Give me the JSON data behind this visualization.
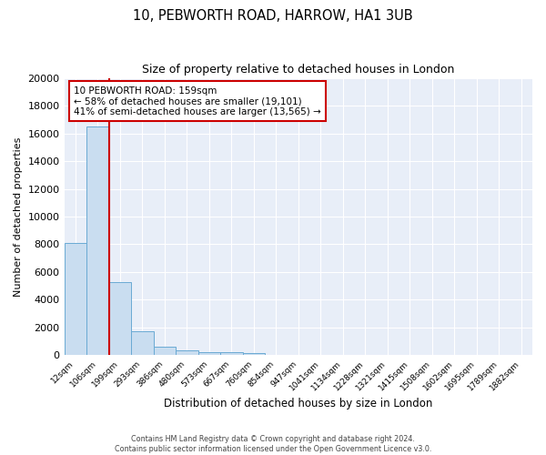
{
  "title": "10, PEBWORTH ROAD, HARROW, HA1 3UB",
  "subtitle": "Size of property relative to detached houses in London",
  "xlabel": "Distribution of detached houses by size in London",
  "ylabel": "Number of detached properties",
  "bar_labels": [
    "12sqm",
    "106sqm",
    "199sqm",
    "293sqm",
    "386sqm",
    "480sqm",
    "573sqm",
    "667sqm",
    "760sqm",
    "854sqm",
    "947sqm",
    "1041sqm",
    "1134sqm",
    "1228sqm",
    "1321sqm",
    "1415sqm",
    "1508sqm",
    "1602sqm",
    "1695sqm",
    "1789sqm",
    "1882sqm"
  ],
  "bar_values": [
    8100,
    16500,
    5300,
    1750,
    650,
    350,
    250,
    200,
    150,
    0,
    0,
    0,
    0,
    0,
    0,
    0,
    0,
    0,
    0,
    0,
    0
  ],
  "bar_color": "#c9ddf0",
  "bar_edge_color": "#6aaad4",
  "red_line_x": 1.5,
  "property_size": 159,
  "pct_smaller": 58,
  "count_smaller": 19101,
  "pct_larger": 41,
  "count_larger": 13565,
  "ylim": [
    0,
    20000
  ],
  "yticks": [
    0,
    2000,
    4000,
    6000,
    8000,
    10000,
    12000,
    14000,
    16000,
    18000,
    20000
  ],
  "fig_bg": "#ffffff",
  "plot_bg": "#e8eef8",
  "footer1": "Contains HM Land Registry data © Crown copyright and database right 2024.",
  "footer2": "Contains public sector information licensed under the Open Government Licence v3.0.",
  "ann_title": "10 PEBWORTH ROAD: 159sqm",
  "ann_line2": "← 58% of detached houses are smaller (19,101)",
  "ann_line3": "41% of semi-detached houses are larger (13,565) →"
}
